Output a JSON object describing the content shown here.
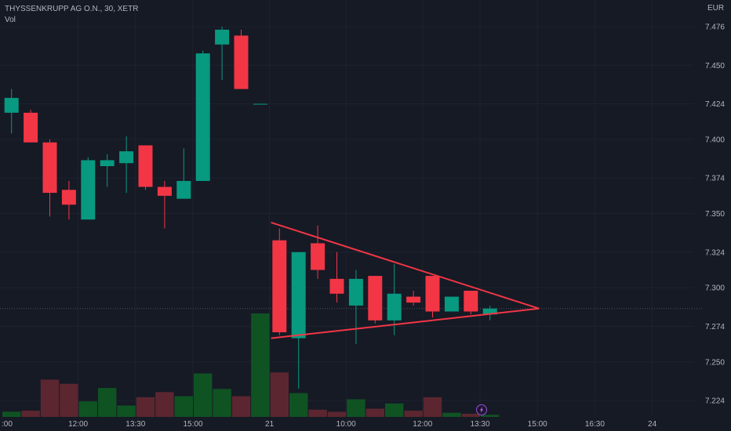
{
  "legend": {
    "title": "THYSSENKRUPP AG O.N., 30, XETR",
    "volume_label": "Vol"
  },
  "currency_label": "EUR",
  "colors": {
    "background": "#161a25",
    "up": "#089981",
    "down": "#f23645",
    "up_volume": "#0f5323",
    "down_volume": "#5b2630",
    "grid": "#1f2330",
    "trendline": "#f23645",
    "last_price_line": "#4a4f5c"
  },
  "icons": {
    "event_marker": "lightning-icon"
  },
  "chart_data": {
    "type": "candlestick",
    "y_ticks": [
      "7.476",
      "7.450",
      "7.424",
      "7.400",
      "7.374",
      "7.350",
      "7.324",
      "7.300",
      "7.274",
      "7.250",
      "7.224"
    ],
    "ylim": [
      7.214,
      7.494
    ],
    "x_ticks": [
      {
        "label": "12:00",
        "index": 4
      },
      {
        "label": "13:30",
        "index": 7
      },
      {
        "label": "15:00",
        "index": 10
      },
      {
        "label": "21",
        "index": 14
      },
      {
        "label": "10:00",
        "index": 18
      },
      {
        "label": "12:00",
        "index": 22
      },
      {
        "label": "13:30",
        "index": 25
      },
      {
        "label": "15:00",
        "index": 28
      },
      {
        "label": "16:30",
        "index": 31
      },
      {
        "label": "24",
        "index": 34
      }
    ],
    "left_edge_label": ":00",
    "candles": [
      {
        "index": 0,
        "open": 7.418,
        "high": 7.434,
        "low": 7.404,
        "close": 7.428
      },
      {
        "index": 1,
        "open": 7.418,
        "high": 7.42,
        "low": 7.398,
        "close": 7.398
      },
      {
        "index": 2,
        "open": 7.398,
        "high": 7.4,
        "low": 7.348,
        "close": 7.364
      },
      {
        "index": 3,
        "open": 7.366,
        "high": 7.372,
        "low": 7.346,
        "close": 7.356
      },
      {
        "index": 4,
        "open": 7.346,
        "high": 7.388,
        "low": 7.346,
        "close": 7.386
      },
      {
        "index": 5,
        "open": 7.382,
        "high": 7.39,
        "low": 7.368,
        "close": 7.386
      },
      {
        "index": 6,
        "open": 7.384,
        "high": 7.402,
        "low": 7.364,
        "close": 7.392
      },
      {
        "index": 7,
        "open": 7.396,
        "high": 7.396,
        "low": 7.366,
        "close": 7.368
      },
      {
        "index": 8,
        "open": 7.368,
        "high": 7.372,
        "low": 7.34,
        "close": 7.362
      },
      {
        "index": 9,
        "open": 7.36,
        "high": 7.394,
        "low": 7.36,
        "close": 7.372
      },
      {
        "index": 10,
        "open": 7.372,
        "high": 7.46,
        "low": 7.372,
        "close": 7.458
      },
      {
        "index": 11,
        "open": 7.464,
        "high": 7.476,
        "low": 7.44,
        "close": 7.474
      },
      {
        "index": 12,
        "open": 7.47,
        "high": 7.474,
        "low": 7.434,
        "close": 7.434
      },
      {
        "index": 13,
        "open": 7.424,
        "high": 7.424,
        "low": 7.424,
        "close": 7.424
      },
      {
        "index": 14,
        "open": 7.332,
        "high": 7.34,
        "low": 7.268,
        "close": 7.27
      },
      {
        "index": 15,
        "open": 7.266,
        "high": 7.324,
        "low": 7.232,
        "close": 7.324
      },
      {
        "index": 16,
        "open": 7.33,
        "high": 7.342,
        "low": 7.306,
        "close": 7.312
      },
      {
        "index": 17,
        "open": 7.306,
        "high": 7.324,
        "low": 7.29,
        "close": 7.296
      },
      {
        "index": 18,
        "open": 7.288,
        "high": 7.312,
        "low": 7.262,
        "close": 7.306
      },
      {
        "index": 19,
        "open": 7.308,
        "high": 7.308,
        "low": 7.276,
        "close": 7.278
      },
      {
        "index": 20,
        "open": 7.278,
        "high": 7.316,
        "low": 7.268,
        "close": 7.296
      },
      {
        "index": 21,
        "open": 7.294,
        "high": 7.298,
        "low": 7.288,
        "close": 7.29
      },
      {
        "index": 22,
        "open": 7.308,
        "high": 7.308,
        "low": 7.28,
        "close": 7.284
      },
      {
        "index": 23,
        "open": 7.284,
        "high": 7.294,
        "low": 7.284,
        "close": 7.294
      },
      {
        "index": 24,
        "open": 7.298,
        "high": 7.298,
        "low": 7.282,
        "close": 7.284
      },
      {
        "index": 25,
        "open": 7.282,
        "high": 7.288,
        "low": 7.278,
        "close": 7.286
      }
    ],
    "volume": [
      {
        "index": 0,
        "value": 0.05,
        "dir": "up"
      },
      {
        "index": 1,
        "value": 0.06,
        "dir": "down"
      },
      {
        "index": 2,
        "value": 0.36,
        "dir": "down"
      },
      {
        "index": 3,
        "value": 0.32,
        "dir": "down"
      },
      {
        "index": 4,
        "value": 0.15,
        "dir": "up"
      },
      {
        "index": 5,
        "value": 0.28,
        "dir": "up"
      },
      {
        "index": 6,
        "value": 0.11,
        "dir": "up"
      },
      {
        "index": 7,
        "value": 0.19,
        "dir": "down"
      },
      {
        "index": 8,
        "value": 0.24,
        "dir": "down"
      },
      {
        "index": 9,
        "value": 0.2,
        "dir": "up"
      },
      {
        "index": 10,
        "value": 0.42,
        "dir": "up"
      },
      {
        "index": 11,
        "value": 0.27,
        "dir": "up"
      },
      {
        "index": 12,
        "value": 0.2,
        "dir": "down"
      },
      {
        "index": 13,
        "value": 1.0,
        "dir": "up"
      },
      {
        "index": 14,
        "value": 0.43,
        "dir": "down"
      },
      {
        "index": 15,
        "value": 0.23,
        "dir": "up"
      },
      {
        "index": 16,
        "value": 0.07,
        "dir": "down"
      },
      {
        "index": 17,
        "value": 0.05,
        "dir": "down"
      },
      {
        "index": 18,
        "value": 0.17,
        "dir": "up"
      },
      {
        "index": 19,
        "value": 0.08,
        "dir": "down"
      },
      {
        "index": 20,
        "value": 0.13,
        "dir": "up"
      },
      {
        "index": 21,
        "value": 0.06,
        "dir": "down"
      },
      {
        "index": 22,
        "value": 0.19,
        "dir": "down"
      },
      {
        "index": 23,
        "value": 0.04,
        "dir": "up"
      },
      {
        "index": 24,
        "value": 0.03,
        "dir": "down"
      },
      {
        "index": 25,
        "value": 0.02,
        "dir": "up"
      }
    ],
    "trendlines": [
      {
        "name": "upper-triangle-line",
        "from": {
          "index": 14,
          "price": 7.344
        },
        "to": {
          "index": 28,
          "price": 7.286
        }
      },
      {
        "name": "lower-triangle-line",
        "from": {
          "index": 14,
          "price": 7.266
        },
        "to": {
          "index": 28,
          "price": 7.286
        }
      }
    ],
    "last_price": 7.286
  }
}
